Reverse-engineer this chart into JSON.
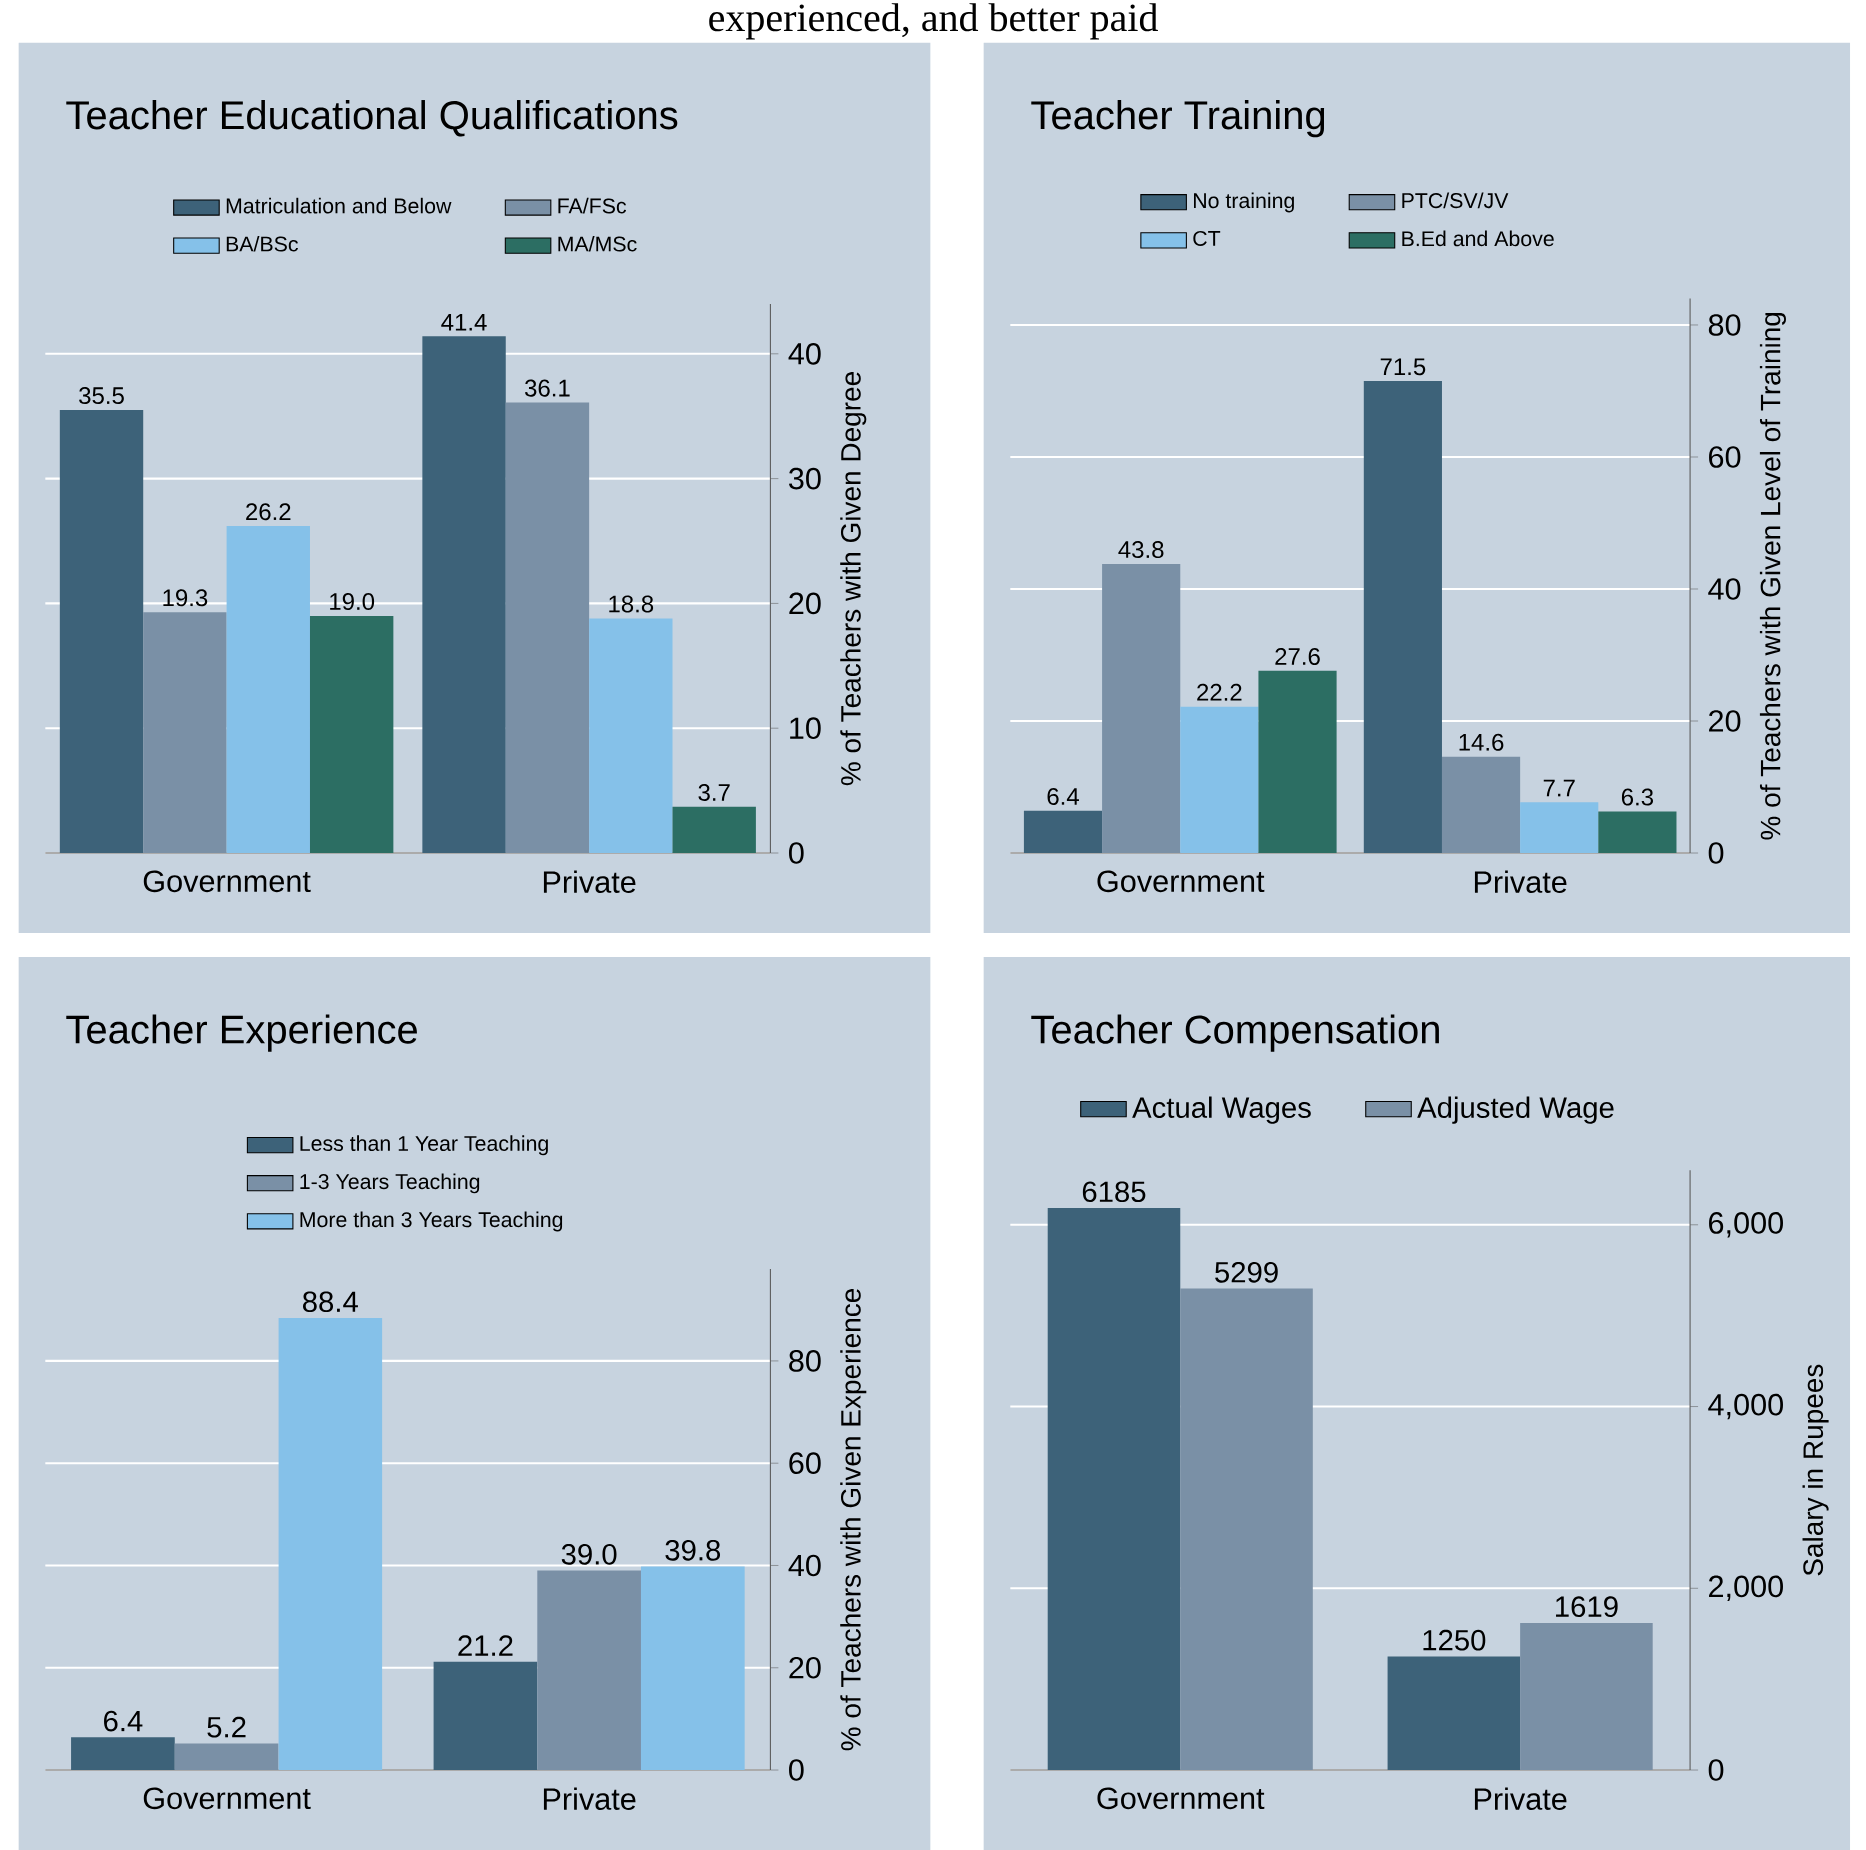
{
  "chart_data": [
    {
      "type": "bar",
      "title": "Teacher Educational Qualifications",
      "annotations": [
        "experienced, and better paid"
      ],
      "ylabel": "% of Teachers with Given Degree",
      "categories": [
        "Government",
        "Private"
      ],
      "ylim": [
        0,
        44
      ],
      "yticks": [
        0,
        10,
        20,
        30,
        40
      ],
      "grid": "y",
      "legend": "top",
      "series": [
        {
          "name": "Matriculation and Below",
          "color": "#3d6279",
          "values": [
            35.5,
            41.4
          ],
          "value_labels": [
            "35.5",
            "41.4"
          ]
        },
        {
          "name": "FA/FSc",
          "color": "#7a90a6",
          "values": [
            19.3,
            36.1
          ],
          "value_labels": [
            "19.3",
            "36.1"
          ]
        },
        {
          "name": "BA/BSc",
          "color": "#85c1e9",
          "values": [
            26.2,
            18.8
          ],
          "value_labels": [
            "26.2",
            "18.8"
          ]
        },
        {
          "name": "MA/MSc",
          "color": "#2c6e63",
          "values": [
            19.0,
            3.7
          ],
          "value_labels": [
            "19.0",
            "3.7"
          ]
        }
      ]
    },
    {
      "type": "bar",
      "title": "Teacher Training",
      "ylabel": "% of Teachers with Given Level of Training",
      "categories": [
        "Government",
        "Private"
      ],
      "ylim": [
        0,
        84
      ],
      "yticks": [
        0,
        20,
        40,
        60,
        80
      ],
      "grid": "y",
      "legend": "top",
      "series": [
        {
          "name": "No training",
          "color": "#3d6279",
          "values": [
            6.4,
            71.5
          ],
          "value_labels": [
            "6.4",
            "71.5"
          ]
        },
        {
          "name": "PTC/SV/JV",
          "color": "#7a90a6",
          "values": [
            43.8,
            14.6
          ],
          "value_labels": [
            "43.8",
            "14.6"
          ]
        },
        {
          "name": "CT",
          "color": "#85c1e9",
          "values": [
            22.2,
            7.7
          ],
          "value_labels": [
            "22.2",
            "7.7"
          ]
        },
        {
          "name": "B.Ed and Above",
          "color": "#2c6e63",
          "values": [
            27.6,
            6.3
          ],
          "value_labels": [
            "27.6",
            "6.3"
          ]
        }
      ]
    },
    {
      "type": "bar",
      "title": "Teacher Experience",
      "ylabel": "% of Teachers with Given Experience",
      "categories": [
        "Government",
        "Private"
      ],
      "ylim": [
        0,
        98
      ],
      "yticks": [
        0,
        20,
        40,
        60,
        80
      ],
      "grid": "y",
      "legend": "top",
      "series": [
        {
          "name": "Less than 1 Year Teaching",
          "color": "#3d6279",
          "values": [
            6.4,
            21.2
          ],
          "value_labels": [
            "6.4",
            "21.2"
          ]
        },
        {
          "name": "1-3 Years Teaching",
          "color": "#7a90a6",
          "values": [
            5.2,
            39.0
          ],
          "value_labels": [
            "5.2",
            "39.0"
          ]
        },
        {
          "name": "More than 3 Years Teaching",
          "color": "#85c1e9",
          "values": [
            88.4,
            39.8
          ],
          "value_labels": [
            "88.4",
            "39.8"
          ]
        }
      ]
    },
    {
      "type": "bar",
      "title": "Teacher Compensation",
      "ylabel": "Salary in Rupees",
      "categories": [
        "Government",
        "Private"
      ],
      "ylim": [
        0,
        6600
      ],
      "yticks": [
        0,
        {
          "value": 2000,
          "label": "2,000"
        },
        {
          "value": 4000,
          "label": "4,000"
        },
        {
          "value": 6000,
          "label": "6,000"
        }
      ],
      "grid": "y",
      "legend": "top",
      "series": [
        {
          "name": "Actual Wages",
          "color": "#3d6279",
          "values": [
            6185,
            1250
          ],
          "value_labels": [
            "6185",
            "1250"
          ]
        },
        {
          "name": "Adjusted Wage",
          "color": "#7a90a6",
          "values": [
            5299,
            1619
          ],
          "value_labels": [
            "5299",
            "1619"
          ]
        }
      ]
    }
  ]
}
